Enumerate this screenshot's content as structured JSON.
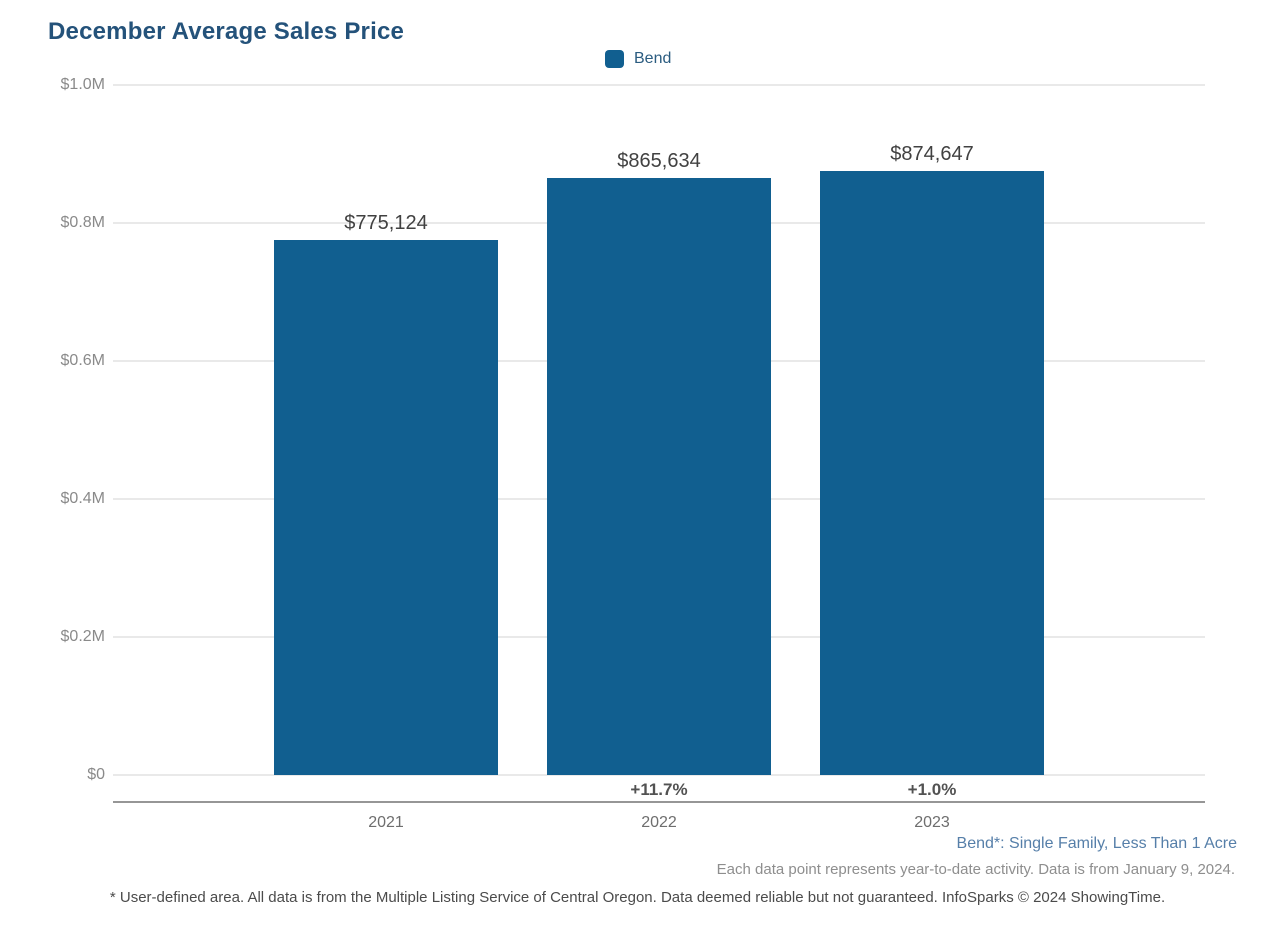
{
  "title": "December Average Sales Price",
  "legend": {
    "label": "Bend",
    "swatch_color": "#115F90"
  },
  "chart_data": {
    "type": "bar",
    "title": "December Average Sales Price",
    "categories": [
      "2021",
      "2022",
      "2023"
    ],
    "series": [
      {
        "name": "Bend",
        "values": [
          775124,
          865634,
          874647
        ]
      }
    ],
    "value_labels": [
      "$775,124",
      "$865,634",
      "$874,647"
    ],
    "pct_change_labels": [
      "",
      "+11.7%",
      "+1.0%"
    ],
    "y_ticks": [
      {
        "value": 1000000,
        "label": "$1.0M"
      },
      {
        "value": 800000,
        "label": "$0.8M"
      },
      {
        "value": 600000,
        "label": "$0.6M"
      },
      {
        "value": 400000,
        "label": "$0.4M"
      },
      {
        "value": 200000,
        "label": "$0.2M"
      },
      {
        "value": 0,
        "label": "$0"
      }
    ],
    "ylim": [
      0,
      1000000
    ],
    "xlabel": "",
    "ylabel": "",
    "grid": true,
    "legend_position": "top-center",
    "bar_color": "#115F90"
  },
  "footnotes": {
    "series_definition": "Bend*: Single Family, Less Than 1 Acre",
    "data_note": "Each data point represents year-to-date activity. Data is from January 9, 2024.",
    "disclaimer": "* User-defined area. All data is from the Multiple Listing Service of Central Oregon. Data deemed reliable but not guaranteed. InfoSparks © 2024 ShowingTime."
  }
}
